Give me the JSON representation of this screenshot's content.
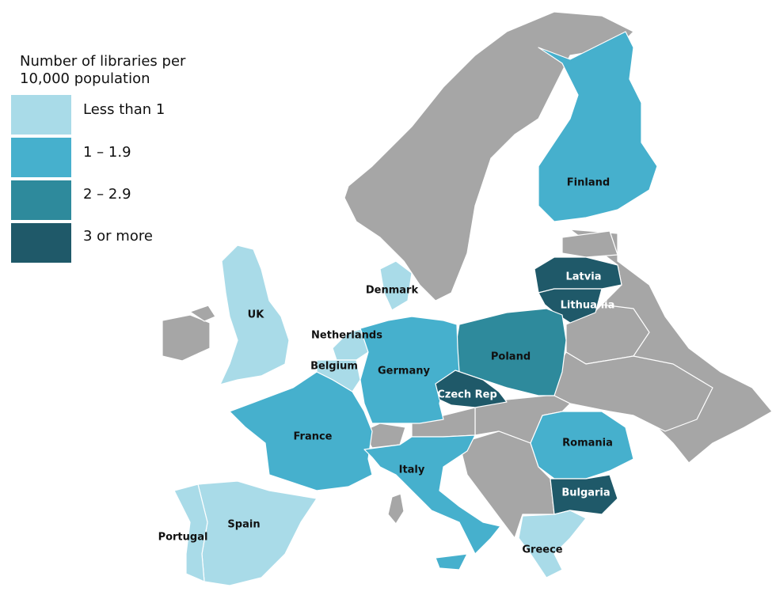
{
  "legend": {
    "title": [
      "Number of libraries per",
      "10,000 population"
    ],
    "items": [
      {
        "label": "Less than 1",
        "color": "#a9dbe8"
      },
      {
        "label": "1 – 1.9",
        "color": "#46b0cd"
      },
      {
        "label": "2 – 2.9",
        "color": "#2e8a9c"
      },
      {
        "label": "3 or more",
        "color": "#1f5969"
      }
    ]
  },
  "countries": [
    {
      "name": "Finland",
      "color": "#46b0cd"
    },
    {
      "name": "Latvia",
      "color": "#1f5969"
    },
    {
      "name": "Lithuania",
      "color": "#1f5969"
    },
    {
      "name": "Denmark",
      "color": "#a9dbe8"
    },
    {
      "name": "UK",
      "color": "#a9dbe8"
    },
    {
      "name": "Netherlands",
      "color": "#a9dbe8"
    },
    {
      "name": "Poland",
      "color": "#2e8a9c"
    },
    {
      "name": "Belgium",
      "color": "#a9dbe8"
    },
    {
      "name": "Germany",
      "color": "#46b0cd"
    },
    {
      "name": "Czech Rep",
      "color": "#1f5969"
    },
    {
      "name": "France",
      "color": "#46b0cd"
    },
    {
      "name": "Romania",
      "color": "#46b0cd"
    },
    {
      "name": "Italy",
      "color": "#46b0cd"
    },
    {
      "name": "Bulgaria",
      "color": "#1f5969"
    },
    {
      "name": "Spain",
      "color": "#a9dbe8"
    },
    {
      "name": "Portugal",
      "color": "#a9dbe8"
    },
    {
      "name": "Greece",
      "color": "#a9dbe8"
    }
  ]
}
